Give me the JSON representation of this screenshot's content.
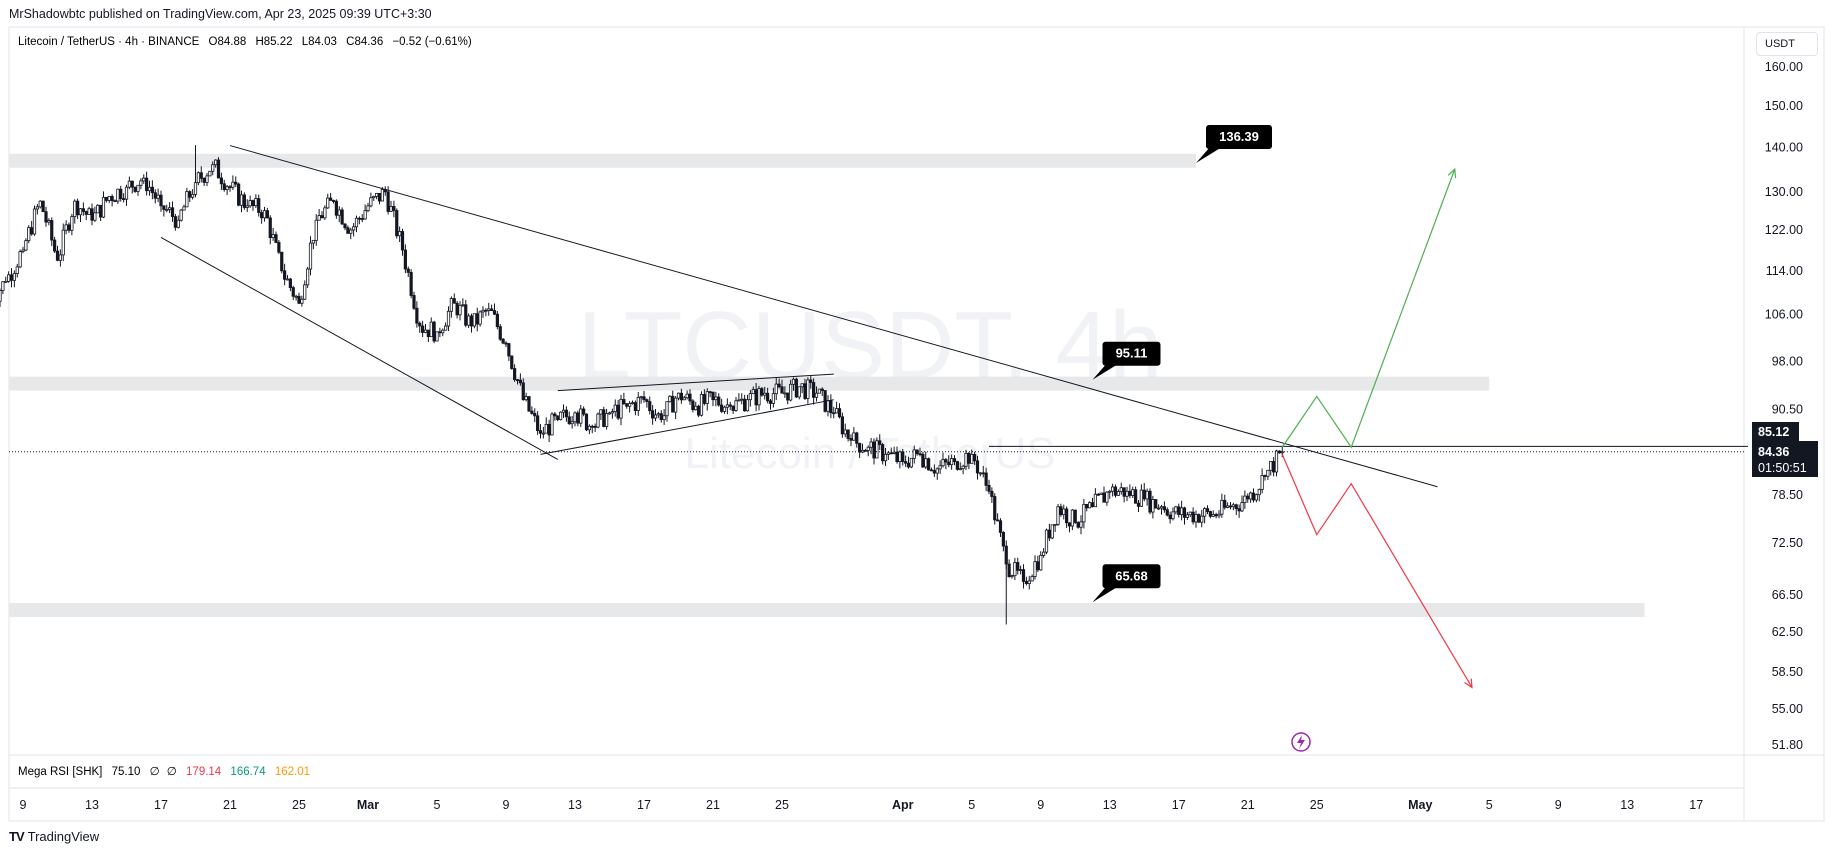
{
  "header": {
    "publisher_line": "MrShadowbtc published on TradingView.com, Apr 23, 2025 09:39 UTC+3:30"
  },
  "legend": {
    "symbol": "Litecoin / TetherUS · 4h · BINANCE",
    "open": "O84.88",
    "high": "H85.22",
    "low": "L84.03",
    "close": "C84.36",
    "change": "−0.52 (−0.61%)"
  },
  "currency_label": "USDT",
  "watermark": {
    "ticker": "LTCUSDT, 4h",
    "name": "Litecoin / TetherUS"
  },
  "indicator": {
    "name": "Mega RSI [SHK]",
    "value": "75.10",
    "sym1": "∅",
    "sym2": "∅",
    "v1": "179.14",
    "v2": "166.74",
    "v3": "162.01",
    "colors": [
      "#f23645",
      "#089981",
      "#ff9800"
    ]
  },
  "footer": {
    "brand": "TradingView"
  },
  "price_tags": {
    "upper": "85.12",
    "current": "84.36",
    "countdown": "01:50:51"
  },
  "chart_data": {
    "type": "candlestick",
    "symbol": "LTCUSDT",
    "interval": "4h",
    "y_scale": "log",
    "ylim": [
      50.5,
      170
    ],
    "y_ticks": [
      160.0,
      150.0,
      140.0,
      130.0,
      122.0,
      114.0,
      106.0,
      98.0,
      90.5,
      78.5,
      72.5,
      66.5,
      62.5,
      58.5,
      55.0,
      51.8
    ],
    "x_ticks": [
      {
        "date": "2025-02-09",
        "label": "9"
      },
      {
        "date": "2025-02-13",
        "label": "13"
      },
      {
        "date": "2025-02-17",
        "label": "17"
      },
      {
        "date": "2025-02-21",
        "label": "21"
      },
      {
        "date": "2025-02-25",
        "label": "25"
      },
      {
        "date": "2025-03-01",
        "label": "Mar",
        "bold": true
      },
      {
        "date": "2025-03-05",
        "label": "5"
      },
      {
        "date": "2025-03-09",
        "label": "9"
      },
      {
        "date": "2025-03-13",
        "label": "13"
      },
      {
        "date": "2025-03-17",
        "label": "17"
      },
      {
        "date": "2025-03-21",
        "label": "21"
      },
      {
        "date": "2025-03-25",
        "label": "25"
      },
      {
        "date": "2025-04-01",
        "label": "Apr",
        "bold": true
      },
      {
        "date": "2025-04-05",
        "label": "5"
      },
      {
        "date": "2025-04-09",
        "label": "9"
      },
      {
        "date": "2025-04-13",
        "label": "13"
      },
      {
        "date": "2025-04-17",
        "label": "17"
      },
      {
        "date": "2025-04-21",
        "label": "21"
      },
      {
        "date": "2025-04-25",
        "label": "25"
      },
      {
        "date": "2025-05-01",
        "label": "May",
        "bold": true
      },
      {
        "date": "2025-05-05",
        "label": "5"
      },
      {
        "date": "2025-05-09",
        "label": "9"
      },
      {
        "date": "2025-05-13",
        "label": "13"
      },
      {
        "date": "2025-05-17",
        "label": "17"
      }
    ],
    "ohlc_close_path": [
      {
        "date": "2025-02-07",
        "close": 108
      },
      {
        "date": "2025-02-08",
        "close": 112
      },
      {
        "date": "2025-02-09",
        "close": 118
      },
      {
        "date": "2025-02-10",
        "close": 128
      },
      {
        "date": "2025-02-11",
        "close": 116
      },
      {
        "date": "2025-02-12",
        "close": 128
      },
      {
        "date": "2025-02-13",
        "close": 124
      },
      {
        "date": "2025-02-14",
        "close": 129
      },
      {
        "date": "2025-02-15",
        "close": 131
      },
      {
        "date": "2025-02-16",
        "close": 133
      },
      {
        "date": "2025-02-17",
        "close": 127
      },
      {
        "date": "2025-02-18",
        "close": 124
      },
      {
        "date": "2025-02-19",
        "close": 132
      },
      {
        "date": "2025-02-20",
        "close": 136
      },
      {
        "date": "2025-02-21",
        "close": 131
      },
      {
        "date": "2025-02-22",
        "close": 127
      },
      {
        "date": "2025-02-23",
        "close": 126
      },
      {
        "date": "2025-02-24",
        "close": 114
      },
      {
        "date": "2025-02-25",
        "close": 108
      },
      {
        "date": "2025-02-26",
        "close": 124
      },
      {
        "date": "2025-02-27",
        "close": 128
      },
      {
        "date": "2025-02-28",
        "close": 122
      },
      {
        "date": "2025-03-01",
        "close": 127
      },
      {
        "date": "2025-03-02",
        "close": 130
      },
      {
        "date": "2025-03-03",
        "close": 118
      },
      {
        "date": "2025-03-04",
        "close": 104
      },
      {
        "date": "2025-03-05",
        "close": 103
      },
      {
        "date": "2025-03-06",
        "close": 108
      },
      {
        "date": "2025-03-07",
        "close": 104
      },
      {
        "date": "2025-03-08",
        "close": 107
      },
      {
        "date": "2025-03-09",
        "close": 101
      },
      {
        "date": "2025-03-10",
        "close": 92
      },
      {
        "date": "2025-03-11",
        "close": 87
      },
      {
        "date": "2025-03-12",
        "close": 89
      },
      {
        "date": "2025-03-13",
        "close": 90
      },
      {
        "date": "2025-03-14",
        "close": 88
      },
      {
        "date": "2025-03-15",
        "close": 90
      },
      {
        "date": "2025-03-16",
        "close": 91
      },
      {
        "date": "2025-03-17",
        "close": 92
      },
      {
        "date": "2025-03-18",
        "close": 89
      },
      {
        "date": "2025-03-19",
        "close": 93
      },
      {
        "date": "2025-03-20",
        "close": 91
      },
      {
        "date": "2025-03-21",
        "close": 92
      },
      {
        "date": "2025-03-22",
        "close": 91
      },
      {
        "date": "2025-03-23",
        "close": 92
      },
      {
        "date": "2025-03-24",
        "close": 93
      },
      {
        "date": "2025-03-25",
        "close": 93
      },
      {
        "date": "2025-03-26",
        "close": 94
      },
      {
        "date": "2025-03-27",
        "close": 93
      },
      {
        "date": "2025-03-28",
        "close": 90
      },
      {
        "date": "2025-03-29",
        "close": 86
      },
      {
        "date": "2025-03-30",
        "close": 85
      },
      {
        "date": "2025-03-31",
        "close": 84
      },
      {
        "date": "2025-04-01",
        "close": 83
      },
      {
        "date": "2025-04-02",
        "close": 84
      },
      {
        "date": "2025-04-03",
        "close": 82
      },
      {
        "date": "2025-04-04",
        "close": 83
      },
      {
        "date": "2025-04-05",
        "close": 84
      },
      {
        "date": "2025-04-06",
        "close": 79
      },
      {
        "date": "2025-04-07",
        "close": 70
      },
      {
        "date": "2025-04-08",
        "close": 68
      },
      {
        "date": "2025-04-09",
        "close": 71
      },
      {
        "date": "2025-04-10",
        "close": 77
      },
      {
        "date": "2025-04-11",
        "close": 75
      },
      {
        "date": "2025-04-12",
        "close": 77
      },
      {
        "date": "2025-04-13",
        "close": 79
      },
      {
        "date": "2025-04-14",
        "close": 79
      },
      {
        "date": "2025-04-15",
        "close": 78
      },
      {
        "date": "2025-04-16",
        "close": 77
      },
      {
        "date": "2025-04-17",
        "close": 76
      },
      {
        "date": "2025-04-18",
        "close": 76
      },
      {
        "date": "2025-04-19",
        "close": 76
      },
      {
        "date": "2025-04-20",
        "close": 77
      },
      {
        "date": "2025-04-21",
        "close": 78
      },
      {
        "date": "2025-04-22",
        "close": 81
      },
      {
        "date": "2025-04-23",
        "close": 84.36
      }
    ],
    "lows_highs": {
      "peak": {
        "date": "2025-02-19",
        "high": 140.5
      },
      "low": {
        "date": "2025-04-07",
        "low": 63.3
      }
    },
    "zones": [
      {
        "level_top": 138.5,
        "level_bottom": 136.3,
        "end_date": "2025-04-18"
      },
      {
        "level_top": 95.6,
        "level_bottom": 94.1,
        "end_date": "2025-05-05"
      },
      {
        "level_top": 65.6,
        "level_bottom": 64.6,
        "end_date": "2025-05-14"
      }
    ],
    "callouts": [
      {
        "label": "136.39",
        "anchor_date": "2025-04-18",
        "anchor_price": 136.39
      },
      {
        "label": "95.11",
        "anchor_date": "2025-04-12",
        "anchor_price": 95.11
      },
      {
        "label": "65.68",
        "anchor_date": "2025-04-12",
        "anchor_price": 65.68
      }
    ],
    "trendlines": [
      {
        "name": "descending-resistance",
        "from": {
          "date": "2025-02-21",
          "price": 140.4
        },
        "to": {
          "date": "2025-05-02",
          "price": 79.6
        }
      },
      {
        "name": "wedge-lower",
        "from": {
          "date": "2025-02-17",
          "price": 120.5
        },
        "to": {
          "date": "2025-03-12",
          "price": 83.3
        }
      },
      {
        "name": "flag-upper",
        "from": {
          "date": "2025-03-12",
          "price": 93.4
        },
        "to": {
          "date": "2025-03-28",
          "price": 96
        }
      },
      {
        "name": "flag-lower",
        "from": {
          "date": "2025-03-11",
          "price": 84
        },
        "to": {
          "date": "2025-03-28",
          "price": 92
        }
      },
      {
        "name": "horizontal-85",
        "from": {
          "date": "2025-04-06",
          "price": 85.12
        },
        "to": {
          "date": "2025-05-20",
          "price": 85.12
        }
      }
    ],
    "projections": [
      {
        "name": "bullish",
        "color": "#4caf50",
        "points": [
          {
            "date": "2025-04-23",
            "price": 85
          },
          {
            "date": "2025-04-25",
            "price": 92.5
          },
          {
            "date": "2025-04-27",
            "price": 85
          },
          {
            "date": "2025-05-03",
            "price": 135
          }
        ]
      },
      {
        "name": "bearish",
        "color": "#f23645",
        "points": [
          {
            "date": "2025-04-23",
            "price": 84
          },
          {
            "date": "2025-04-25",
            "price": 73.5
          },
          {
            "date": "2025-04-27",
            "price": 80
          },
          {
            "date": "2025-05-04",
            "price": 57
          }
        ]
      }
    ],
    "last_price": 84.36
  }
}
